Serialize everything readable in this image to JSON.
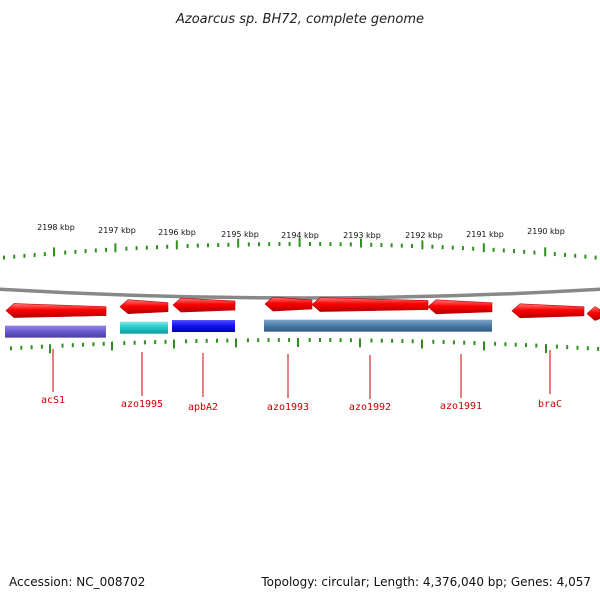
{
  "title": "Azoarcus sp. BH72, complete genome",
  "ruler": {
    "labels": [
      "2198 kbp",
      "2197 kbp",
      "2196 kbp",
      "2195 kbp",
      "2194 kbp",
      "2193 kbp",
      "2192 kbp",
      "2191 kbp",
      "2190 kbp"
    ],
    "tick_color": "#2f8f1f"
  },
  "backbone_color": "#888888",
  "genes": [
    {
      "name": "acS1",
      "color": "#ff0000",
      "domain_color": "#6a5acd"
    },
    {
      "name": "azo1995",
      "color": "#ff0000",
      "domain_color": "#1fc8c8"
    },
    {
      "name": "apbA2",
      "color": "#ff0000",
      "domain_color": "#1010f0"
    },
    {
      "name": "azo1993",
      "color": "#ff0000",
      "domain_color": "#4a7ba6"
    },
    {
      "name": "azo1992",
      "color": "#ff0000",
      "domain_color": "#4a7ba6"
    },
    {
      "name": "azo1991",
      "color": "#ff0000",
      "domain_color": "#4a7ba6"
    },
    {
      "name": "braC",
      "color": "#ff0000"
    },
    {
      "name": "",
      "color": "#ff0000"
    }
  ],
  "label_color": "#cc0000",
  "footer": {
    "accession": "Accession: NC_008702",
    "summary": "Topology: circular; Length: 4,376,040 bp; Genes: 4,057"
  }
}
